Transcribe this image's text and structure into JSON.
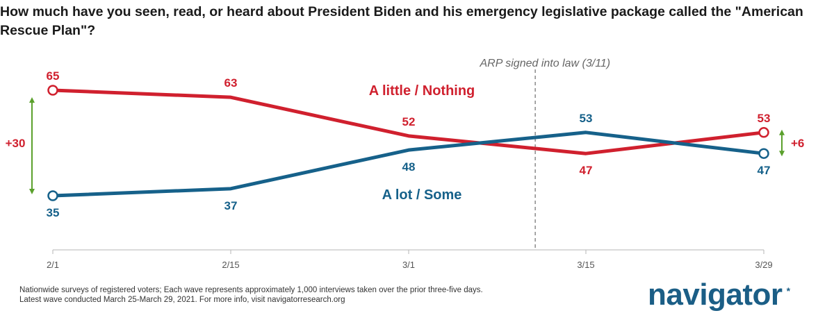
{
  "title": "How much have you seen, read, or heard about President Biden and his emergency legislative package called the \"American Rescue Plan\"?",
  "footnote": [
    "Nationwide surveys of registered voters; Each wave represents approximately 1,000 interviews taken over the prior three-five days.",
    "Latest wave conducted March 25-March 29, 2021. For more info, visit navigatorresearch.org"
  ],
  "logo": {
    "text": "navigator",
    "mark": "*"
  },
  "chart_data": {
    "type": "line",
    "title": "How much have you seen, read, or heard about President Biden and his emergency legislative package called the \"American Rescue Plan\"?",
    "x": [
      "2/1",
      "2/15",
      "3/1",
      "3/15",
      "3/29"
    ],
    "ylim": [
      20,
      80
    ],
    "grid": false,
    "series": [
      {
        "name": "A little / Nothing",
        "color": "#d0202e",
        "values": [
          65,
          63,
          52,
          47,
          53
        ]
      },
      {
        "name": "A lot / Some",
        "color": "#16618a",
        "values": [
          35,
          37,
          48,
          53,
          47
        ]
      }
    ],
    "annotations": {
      "vline": {
        "label": "ARP signed into law (3/11)"
      },
      "gap_start": {
        "label": "+30",
        "color": "#d0202e"
      },
      "gap_end": {
        "label": "+6",
        "color": "#d0202e"
      },
      "arrow_color": "#5aa02c"
    }
  }
}
